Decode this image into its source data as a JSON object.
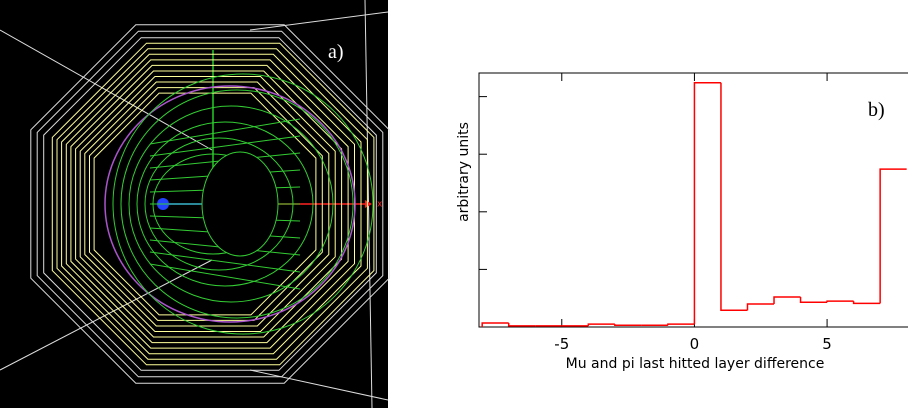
{
  "image_panel": {
    "label": "a)",
    "axis_label": "x"
  },
  "chart_data": {
    "type": "histogram",
    "panel_label": "b)",
    "xlabel": "Mu and pi last hitted layer difference",
    "ylabel": "arbitrary units",
    "bins": [
      -8,
      -7,
      -6,
      -5,
      -4,
      -3,
      -2,
      -1,
      0,
      1,
      2,
      3,
      4,
      5,
      6,
      7,
      8
    ],
    "values": [
      0.07,
      0.02,
      0.02,
      0.02,
      0.05,
      0.03,
      0.03,
      0.05,
      4.24,
      0.29,
      0.4,
      0.52,
      0.43,
      0.45,
      0.41,
      2.74
    ],
    "color": "#ff0000",
    "xlim": [
      -8.12,
      8.05
    ],
    "xticks": [
      -5,
      0,
      5
    ],
    "ylim": [
      0,
      4.41
    ],
    "yticks": [
      1,
      2,
      3,
      4
    ],
    "ytick_labels": false
  }
}
